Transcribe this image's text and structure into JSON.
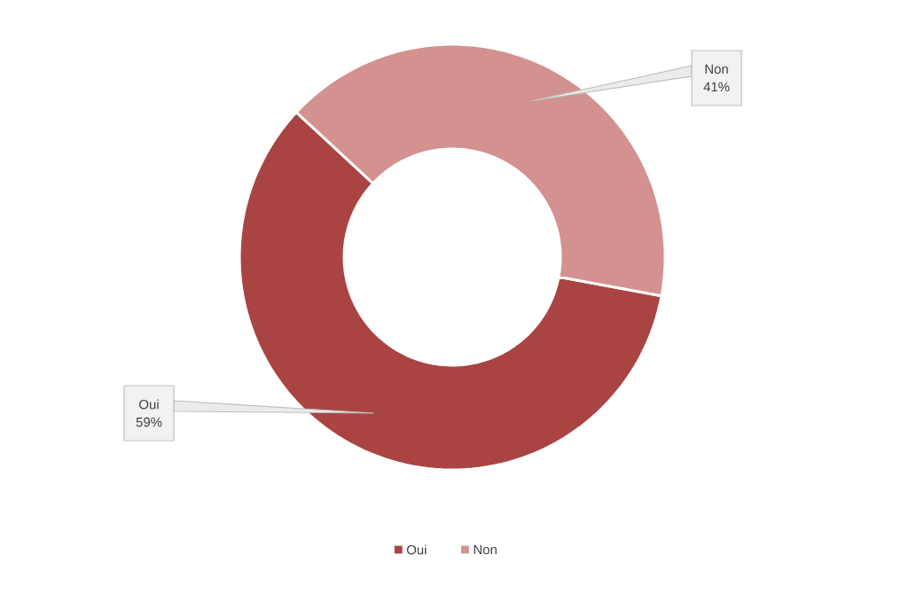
{
  "chart_data": {
    "type": "donut",
    "categories": [
      "Oui",
      "Non"
    ],
    "values": [
      59,
      41
    ],
    "value_labels": [
      "59%",
      "41%"
    ],
    "colors": [
      "#a94442",
      "#d39190"
    ],
    "legend": "bottom"
  }
}
